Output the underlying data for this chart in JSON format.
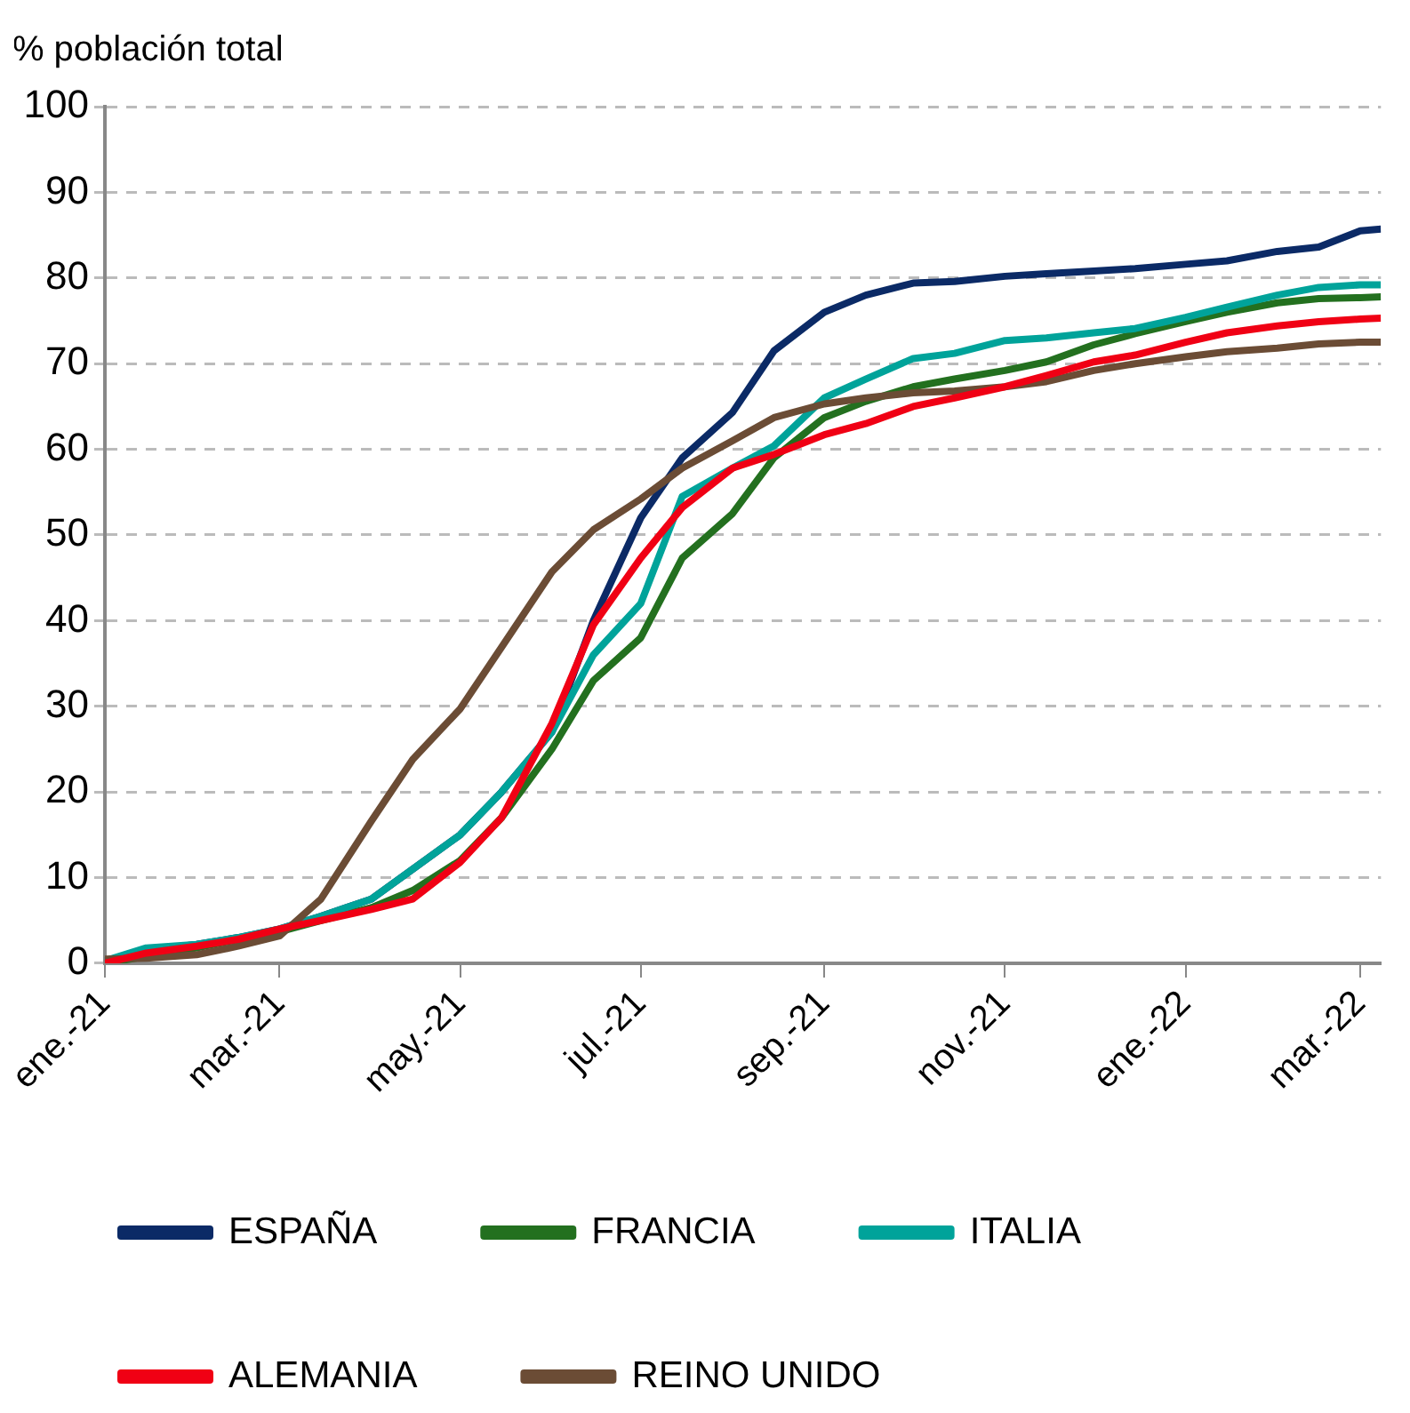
{
  "chart_data": {
    "type": "line",
    "ylabel": "% población total",
    "x": [
      "2021-01-01",
      "2021-01-15",
      "2021-02-01",
      "2021-02-15",
      "2021-03-01",
      "2021-03-15",
      "2021-04-01",
      "2021-04-15",
      "2021-05-01",
      "2021-05-15",
      "2021-06-01",
      "2021-06-15",
      "2021-07-01",
      "2021-07-15",
      "2021-08-01",
      "2021-08-15",
      "2021-09-01",
      "2021-09-15",
      "2021-10-01",
      "2021-10-15",
      "2021-11-01",
      "2021-11-15",
      "2021-12-01",
      "2021-12-15",
      "2022-01-01",
      "2022-01-15",
      "2022-02-01",
      "2022-02-15",
      "2022-03-01",
      "2022-03-08"
    ],
    "series": [
      {
        "name": "ESPAÑA",
        "color": "#0b2a66",
        "values": [
          0.3,
          1.5,
          2.2,
          3,
          4,
          5.5,
          7.5,
          11,
          15,
          20,
          27,
          40,
          52,
          59,
          64.3,
          71.5,
          76,
          78,
          79.4,
          79.6,
          80.2,
          80.5,
          80.8,
          81.1,
          81.6,
          82,
          83.1,
          83.6,
          85.5,
          85.7
        ]
      },
      {
        "name": "FRANCIA",
        "color": "#23701f",
        "values": [
          0,
          0.8,
          1.8,
          2.8,
          3.7,
          5,
          6.5,
          8.5,
          12,
          17,
          25,
          33,
          38,
          47.3,
          52.5,
          59,
          63.7,
          65.6,
          67.3,
          68.2,
          69.2,
          70.2,
          72.2,
          73.5,
          74.9,
          76,
          77.1,
          77.6,
          77.7,
          77.8
        ]
      },
      {
        "name": "ITALIA",
        "color": "#00a39a",
        "values": [
          0.3,
          1.8,
          2.2,
          3,
          4,
          5.5,
          7.5,
          11,
          15,
          20,
          27,
          36,
          42,
          54.5,
          57.8,
          60.4,
          66,
          68.2,
          70.6,
          71.2,
          72.7,
          73,
          73.6,
          74.1,
          75.4,
          76.6,
          78,
          78.9,
          79.2,
          79.2
        ]
      },
      {
        "name": "ALEMANIA",
        "color": "#f00014",
        "values": [
          0,
          1.2,
          2,
          2.8,
          4,
          5,
          6.3,
          7.5,
          11.8,
          17,
          28,
          39.5,
          47.3,
          53.2,
          57.8,
          59.4,
          61.7,
          63,
          65,
          66,
          67.3,
          68.6,
          70.2,
          71,
          72.5,
          73.6,
          74.4,
          74.9,
          75.2,
          75.3
        ]
      },
      {
        "name": "REINO UNIDO",
        "color": "#6b4c35",
        "values": [
          0.5,
          0.6,
          1,
          2,
          3.2,
          7.5,
          16.6,
          23.8,
          29.7,
          36.9,
          45.7,
          50.6,
          54.2,
          57.8,
          61,
          63.7,
          65.3,
          66,
          66.6,
          66.8,
          67.3,
          67.9,
          69.2,
          70,
          70.8,
          71.4,
          71.8,
          72.3,
          72.5,
          72.5
        ]
      }
    ],
    "xlim": [
      "2021-01-01",
      "2022-03-08"
    ],
    "xticks": [
      {
        "value": "2021-01-01",
        "label": "ene.-21"
      },
      {
        "value": "2021-03-01",
        "label": "mar.-21"
      },
      {
        "value": "2021-05-01",
        "label": "may.-21"
      },
      {
        "value": "2021-07-01",
        "label": "jul.-21"
      },
      {
        "value": "2021-09-01",
        "label": "sep.-21"
      },
      {
        "value": "2021-11-01",
        "label": "nov.-21"
      },
      {
        "value": "2022-01-01",
        "label": "ene.-22"
      },
      {
        "value": "2022-03-01",
        "label": "mar.-22"
      }
    ],
    "ylim": [
      0,
      100
    ],
    "yticks": [
      0,
      10,
      20,
      30,
      40,
      50,
      60,
      70,
      80,
      90,
      100
    ],
    "grid": "y",
    "legend": "bottom",
    "marker": "none",
    "line_style": "solid"
  }
}
